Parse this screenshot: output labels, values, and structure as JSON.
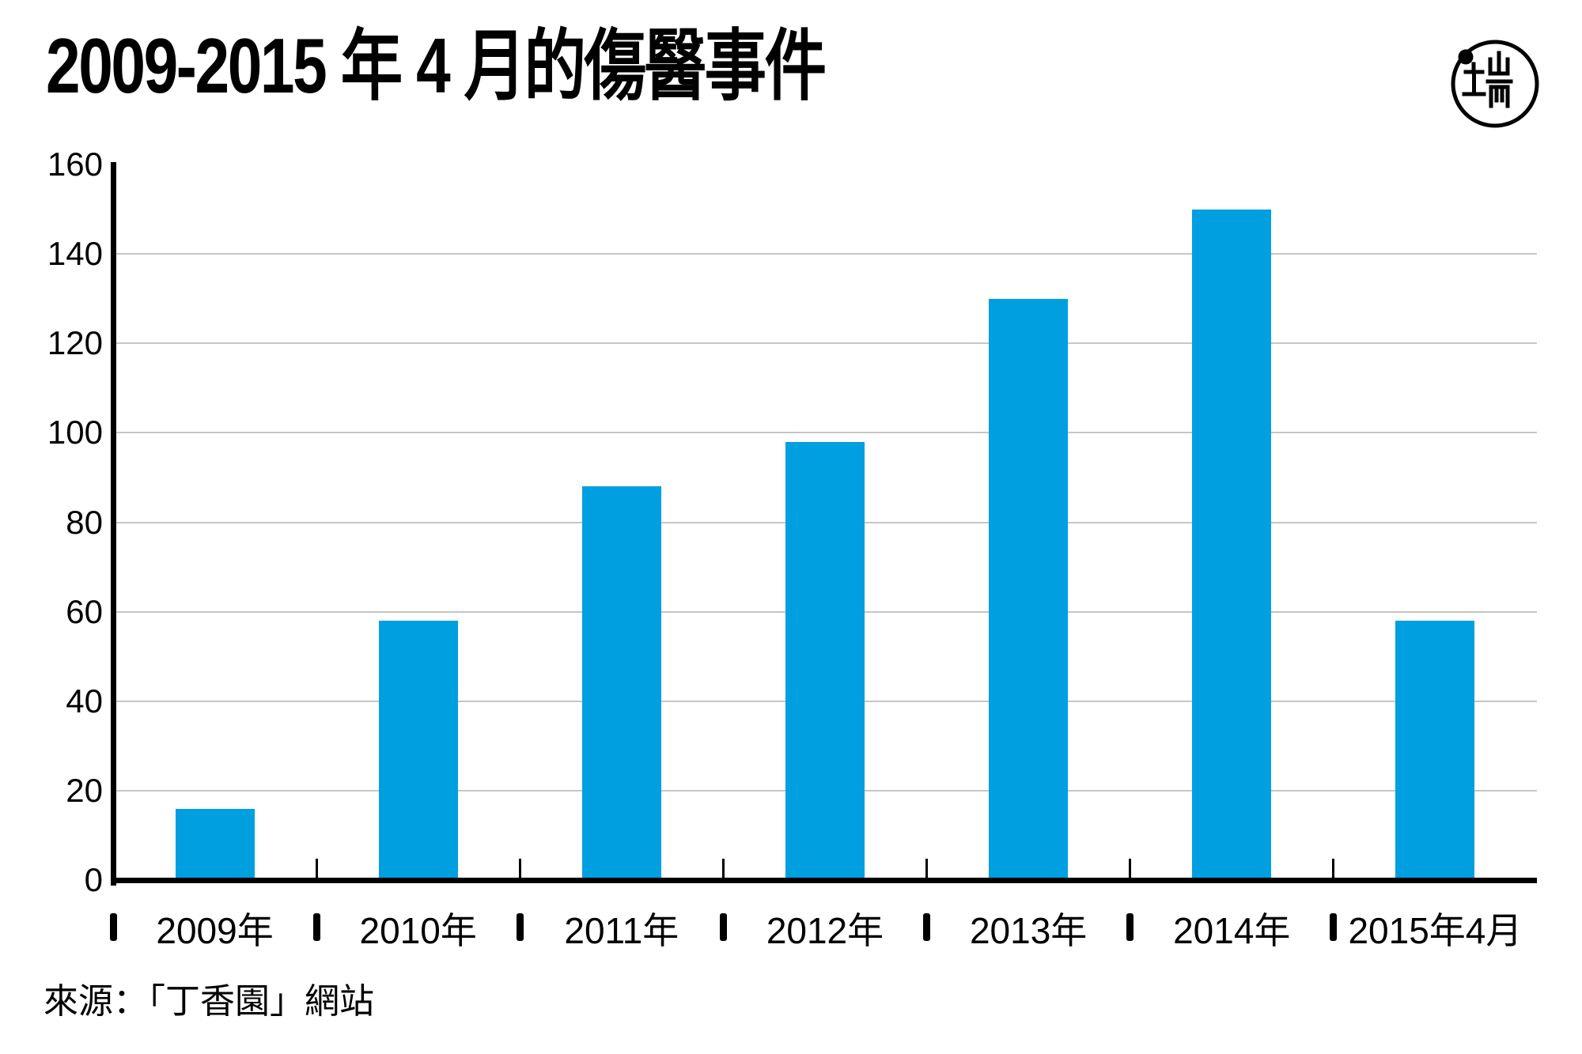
{
  "title": "2009-2015 年 4 月的傷醫事件",
  "source": "來源：「丁香園」網站",
  "logo": {
    "name": "initium-media-logo"
  },
  "colors": {
    "bar": "#009FE0",
    "axis": "#000000",
    "gridline": "#C6C6C6",
    "text": "#000000",
    "background": "#FFFFFF"
  },
  "chart_data": {
    "type": "bar",
    "title": "2009-2015 年 4 月的傷醫事件",
    "categories": [
      "2009年",
      "2010年",
      "2011年",
      "2012年",
      "2013年",
      "2014年",
      "2015年4月"
    ],
    "values": [
      16,
      58,
      88,
      98,
      130,
      150,
      58
    ],
    "xlabel": "",
    "ylabel": "",
    "ylim": [
      0,
      160
    ],
    "yticks": [
      0,
      20,
      40,
      60,
      80,
      100,
      120,
      140,
      160
    ],
    "grid": true,
    "legend": false,
    "bar_color": "#009FE0",
    "source": "來源：「丁香園」網站"
  }
}
